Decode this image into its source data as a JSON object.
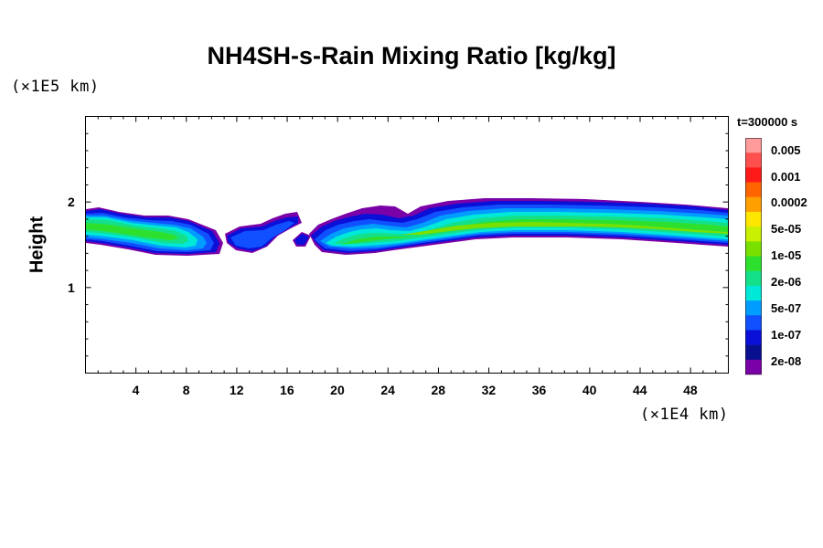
{
  "chart_data": {
    "type": "heatmap",
    "title": "NH4SH-s-Rain Mixing Ratio [kg/kg]",
    "ylabel": "Height",
    "xlabel": "",
    "x_unit": "(×1E4 km)",
    "y_unit": "(×1E5 km)",
    "time_label": "t=300000 s",
    "xlim": [
      0,
      51
    ],
    "ylim": [
      0,
      3
    ],
    "x_ticks": [
      "4",
      "8",
      "12",
      "16",
      "20",
      "24",
      "28",
      "32",
      "36",
      "40",
      "44",
      "48"
    ],
    "y_ticks": [
      "1",
      "2"
    ],
    "colorbar": {
      "labels": [
        "0.005",
        "0.001",
        "0.0002",
        "5e-05",
        "1e-05",
        "2e-06",
        "5e-07",
        "1e-07",
        "2e-08"
      ],
      "colors": [
        "#ff9b9b",
        "#ff5050",
        "#ff1a1a",
        "#ff6400",
        "#ffa000",
        "#ffe600",
        "#c8f000",
        "#7ae000",
        "#2ee02e",
        "#14e08a",
        "#00e8d8",
        "#009cff",
        "#1050ff",
        "#0a10d8",
        "#081090",
        "#7a00a8"
      ]
    },
    "bands": [
      {
        "name": "outer",
        "color": "#7a00a8"
      },
      {
        "name": "dark-blue",
        "color": "#0a10d8"
      },
      {
        "name": "blue",
        "color": "#1050ff"
      },
      {
        "name": "light-blue",
        "color": "#009cff"
      },
      {
        "name": "cyan",
        "color": "#00e8d8"
      },
      {
        "name": "teal-green",
        "color": "#14e08a"
      },
      {
        "name": "green",
        "color": "#2ee02e"
      },
      {
        "name": "yellow-green",
        "color": "#7ae000"
      }
    ]
  }
}
